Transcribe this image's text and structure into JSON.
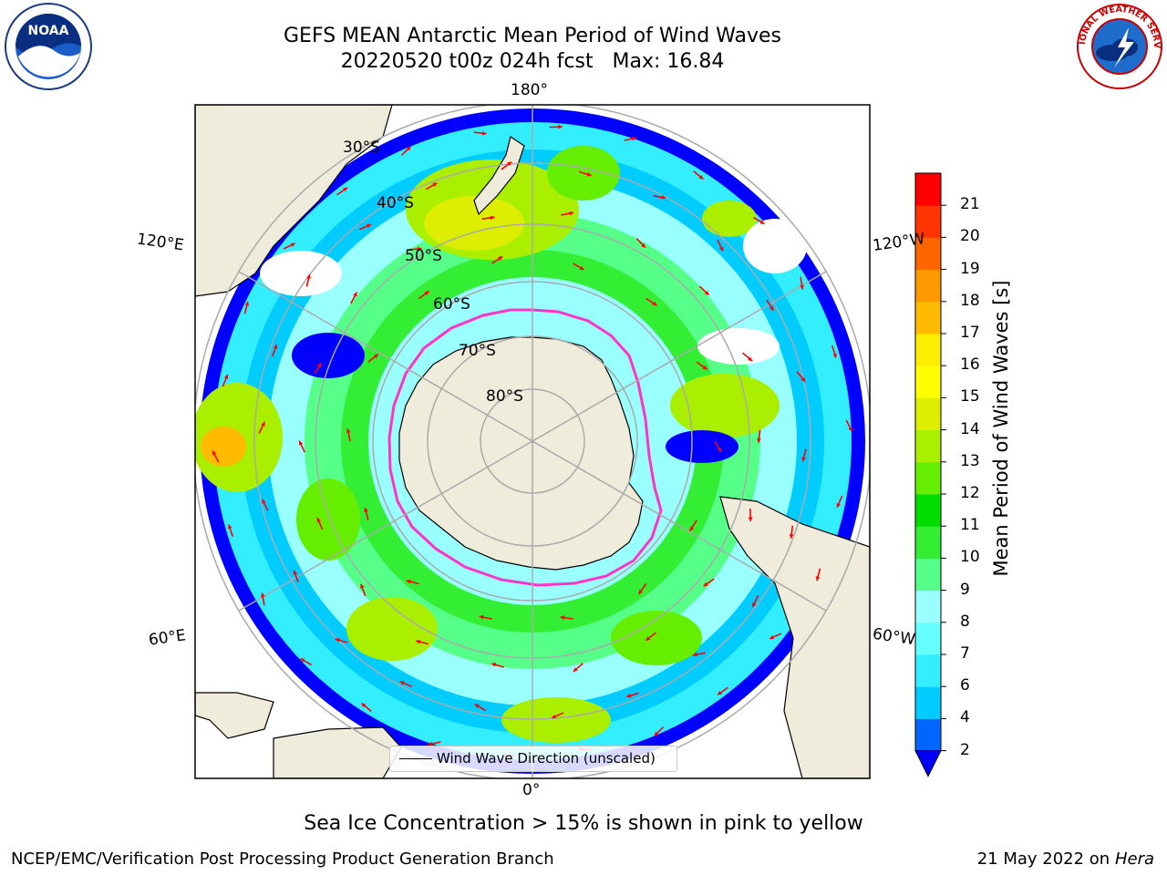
{
  "title": {
    "line1": "GEFS MEAN Antarctic Mean Period of Wind Waves",
    "line2": "20220520 t00z 024h fcst   Max: 16.84"
  },
  "logos": {
    "left": {
      "icon": "noaa-logo-icon",
      "text": "NOAA"
    },
    "right": {
      "icon": "nws-logo-icon",
      "text": "NATIONAL WEATHER SERVICE"
    }
  },
  "map": {
    "projection": "south-polar-stereographic",
    "longitude_labels": {
      "top": "180°",
      "bottom": "0°",
      "left_upper": "120°E",
      "left_lower": "60°E",
      "right_upper": "120°W",
      "right_lower": "60°W"
    },
    "latitude_labels": [
      "30°S",
      "40°S",
      "50°S",
      "60°S",
      "70°S",
      "80°S"
    ],
    "land_color": "#efecdc",
    "ice_edge_color": "#ff33cc",
    "arrow_color": "#ff0000"
  },
  "legend": {
    "label": "Wind Wave Direction (unscaled)"
  },
  "colorbar": {
    "label": "Mean Period of Wind Waves [s]",
    "ticks": [
      "2",
      "4",
      "6",
      "7",
      "8",
      "9",
      "10",
      "11",
      "12",
      "13",
      "14",
      "15",
      "16",
      "17",
      "18",
      "19",
      "20",
      "21"
    ],
    "colors": [
      "#0066ff",
      "#00ccff",
      "#33eeff",
      "#66ffff",
      "#99ffff",
      "#55ff88",
      "#33ee33",
      "#00dd00",
      "#66ee00",
      "#aaee00",
      "#ddee00",
      "#ffff00",
      "#ffee00",
      "#ffbb00",
      "#ff9900",
      "#ff6600",
      "#ff3300",
      "#ff0000"
    ],
    "extend_color": "#0000ff"
  },
  "footer": {
    "note": "Sea Ice Concentration > 15% is shown in pink to yellow",
    "left": "NCEP/EMC/Verification Post Processing Product Generation Branch",
    "right_date": "21 May 2022 on",
    "right_machine": "Hera"
  }
}
